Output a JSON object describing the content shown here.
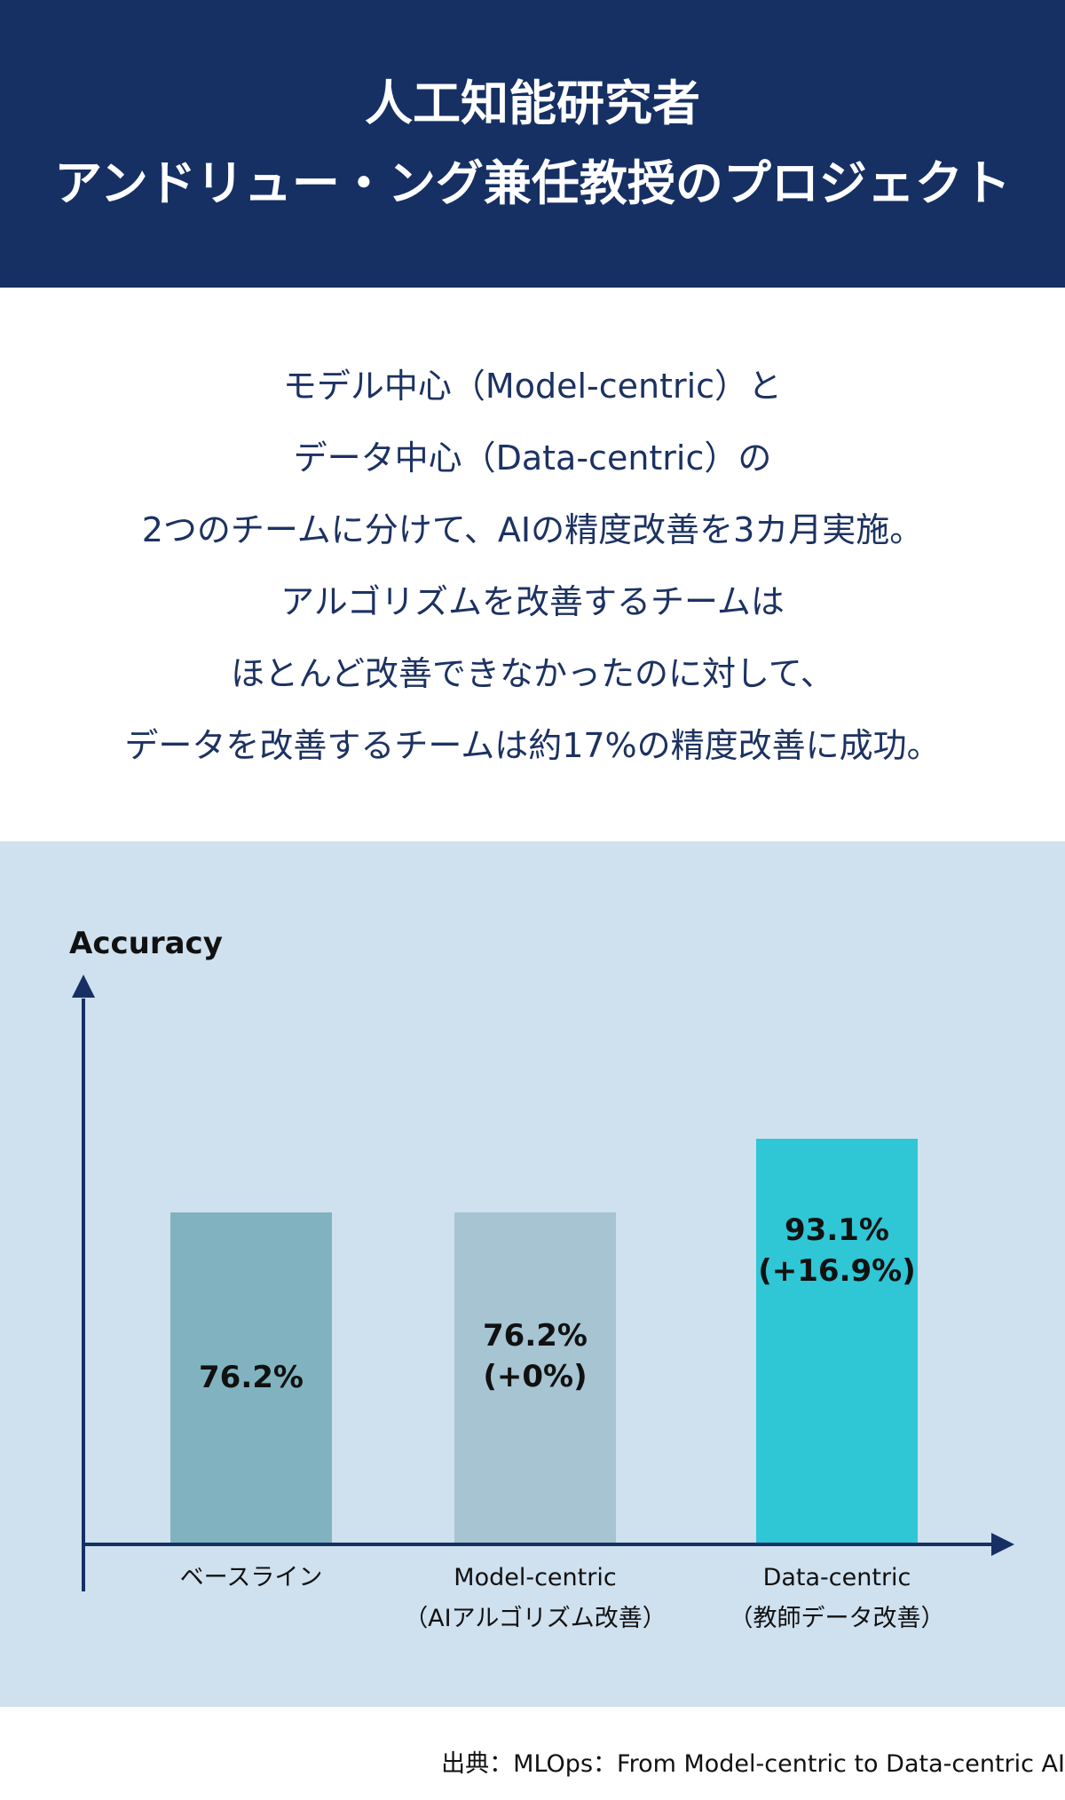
{
  "header": {
    "title_line1": "人工知能研究者",
    "title_line2": "アンドリュー・ング兼任教授のプロジェクト"
  },
  "intro": {
    "lines": [
      "モデル中心（Model-centric）と",
      "データ中心（Data-centric）の",
      "2つのチームに分けて、AIの精度改善を3カ月実施。",
      "アルゴリズムを改善するチームは",
      "ほとんど改善できなかったのに対して、",
      "データを改善するチームは約17%の精度改善に成功。"
    ]
  },
  "chart_data": {
    "type": "bar",
    "title": "",
    "ylabel": "Accuracy",
    "xlabel": "",
    "ylim": [
      0,
      100
    ],
    "grid": false,
    "legend": "none",
    "categories": [
      {
        "line1": "ベースライン",
        "line2": ""
      },
      {
        "line1": "Model-centric",
        "line2": "（AIアルゴリズム改善）"
      },
      {
        "line1": "Data-centric",
        "line2": "（教師データ改善）"
      }
    ],
    "values": [
      76.2,
      76.2,
      93.1
    ],
    "data_labels": [
      {
        "line1": "76.2%",
        "line2": ""
      },
      {
        "line1": "76.2%",
        "line2": "(+0%)"
      },
      {
        "line1": "93.1%",
        "line2": "(+16.9%)"
      }
    ],
    "colors": [
      "#80b3bf",
      "#a6c4d1",
      "#2fc6d5"
    ],
    "axis_color": "#163064"
  },
  "source": "出典：MLOps：From Model-centric to Data-centric AI"
}
